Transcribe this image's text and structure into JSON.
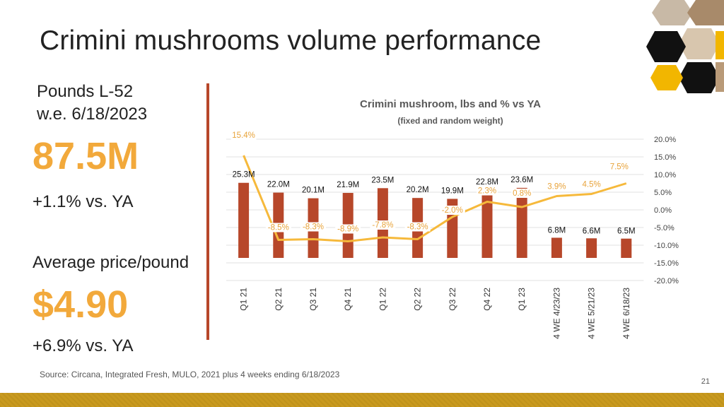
{
  "page": {
    "title": "Crimini mushrooms volume performance",
    "source": "Source: Circana, Integrated Fresh, MULO, 2021 plus 4 weeks ending 6/18/2023",
    "page_number": "21"
  },
  "kpis": {
    "pounds_label_line1": "Pounds L-52",
    "pounds_label_line2": "w.e. 6/18/2023",
    "pounds_value": "87.5M",
    "pounds_delta": "+1.1% vs. YA",
    "price_label": "Average price/pound",
    "price_value": "$4.90",
    "price_delta": "+6.9% vs. YA"
  },
  "colors": {
    "bar": "#b7472a",
    "line": "#f6b93b",
    "kpi_accent": "#f2a93b",
    "band": "#c99a1e"
  },
  "chart_data": {
    "type": "bar",
    "title": "Crimini mushroom, lbs and % vs YA",
    "subtitle": "(fixed and random weight)",
    "categories": [
      "Q1 21",
      "Q2 21",
      "Q3 21",
      "Q4 21",
      "Q1 22",
      "Q2 22",
      "Q3 22",
      "Q4 22",
      "Q1 23",
      "4 WE 4/23/23",
      "4 WE 5/21/23",
      "4 WE 6/18/23"
    ],
    "series": [
      {
        "type": "bar",
        "values": [
          25.3,
          22.0,
          20.1,
          21.9,
          23.5,
          20.2,
          19.9,
          22.8,
          23.6,
          6.8,
          6.6,
          6.5
        ],
        "labels": [
          "25.3M",
          "22.0M",
          "20.1M",
          "21.9M",
          "23.5M",
          "20.2M",
          "19.9M",
          "22.8M",
          "23.6M",
          "6.8M",
          "6.6M",
          "6.5M"
        ]
      },
      {
        "type": "line",
        "values": [
          15.4,
          -8.5,
          -8.3,
          -8.9,
          -7.8,
          -8.3,
          -2.0,
          2.3,
          0.8,
          3.9,
          4.5,
          7.5
        ],
        "labels": [
          "15.4%",
          "-8.5%",
          "-8.3%",
          "-8.9%",
          "-7.8%",
          "-8.3%",
          "-2.0%",
          "2.3%",
          "0.8%",
          "3.9%",
          "4.5%",
          "7.5%"
        ]
      }
    ],
    "y2_ticks": [
      "20.0%",
      "15.0%",
      "10.0%",
      "5.0%",
      "0.0%",
      "-5.0%",
      "-10.0%",
      "-15.0%",
      "-20.0%"
    ],
    "y2lim": [
      -20,
      20
    ],
    "grid": true,
    "legend": "none"
  }
}
